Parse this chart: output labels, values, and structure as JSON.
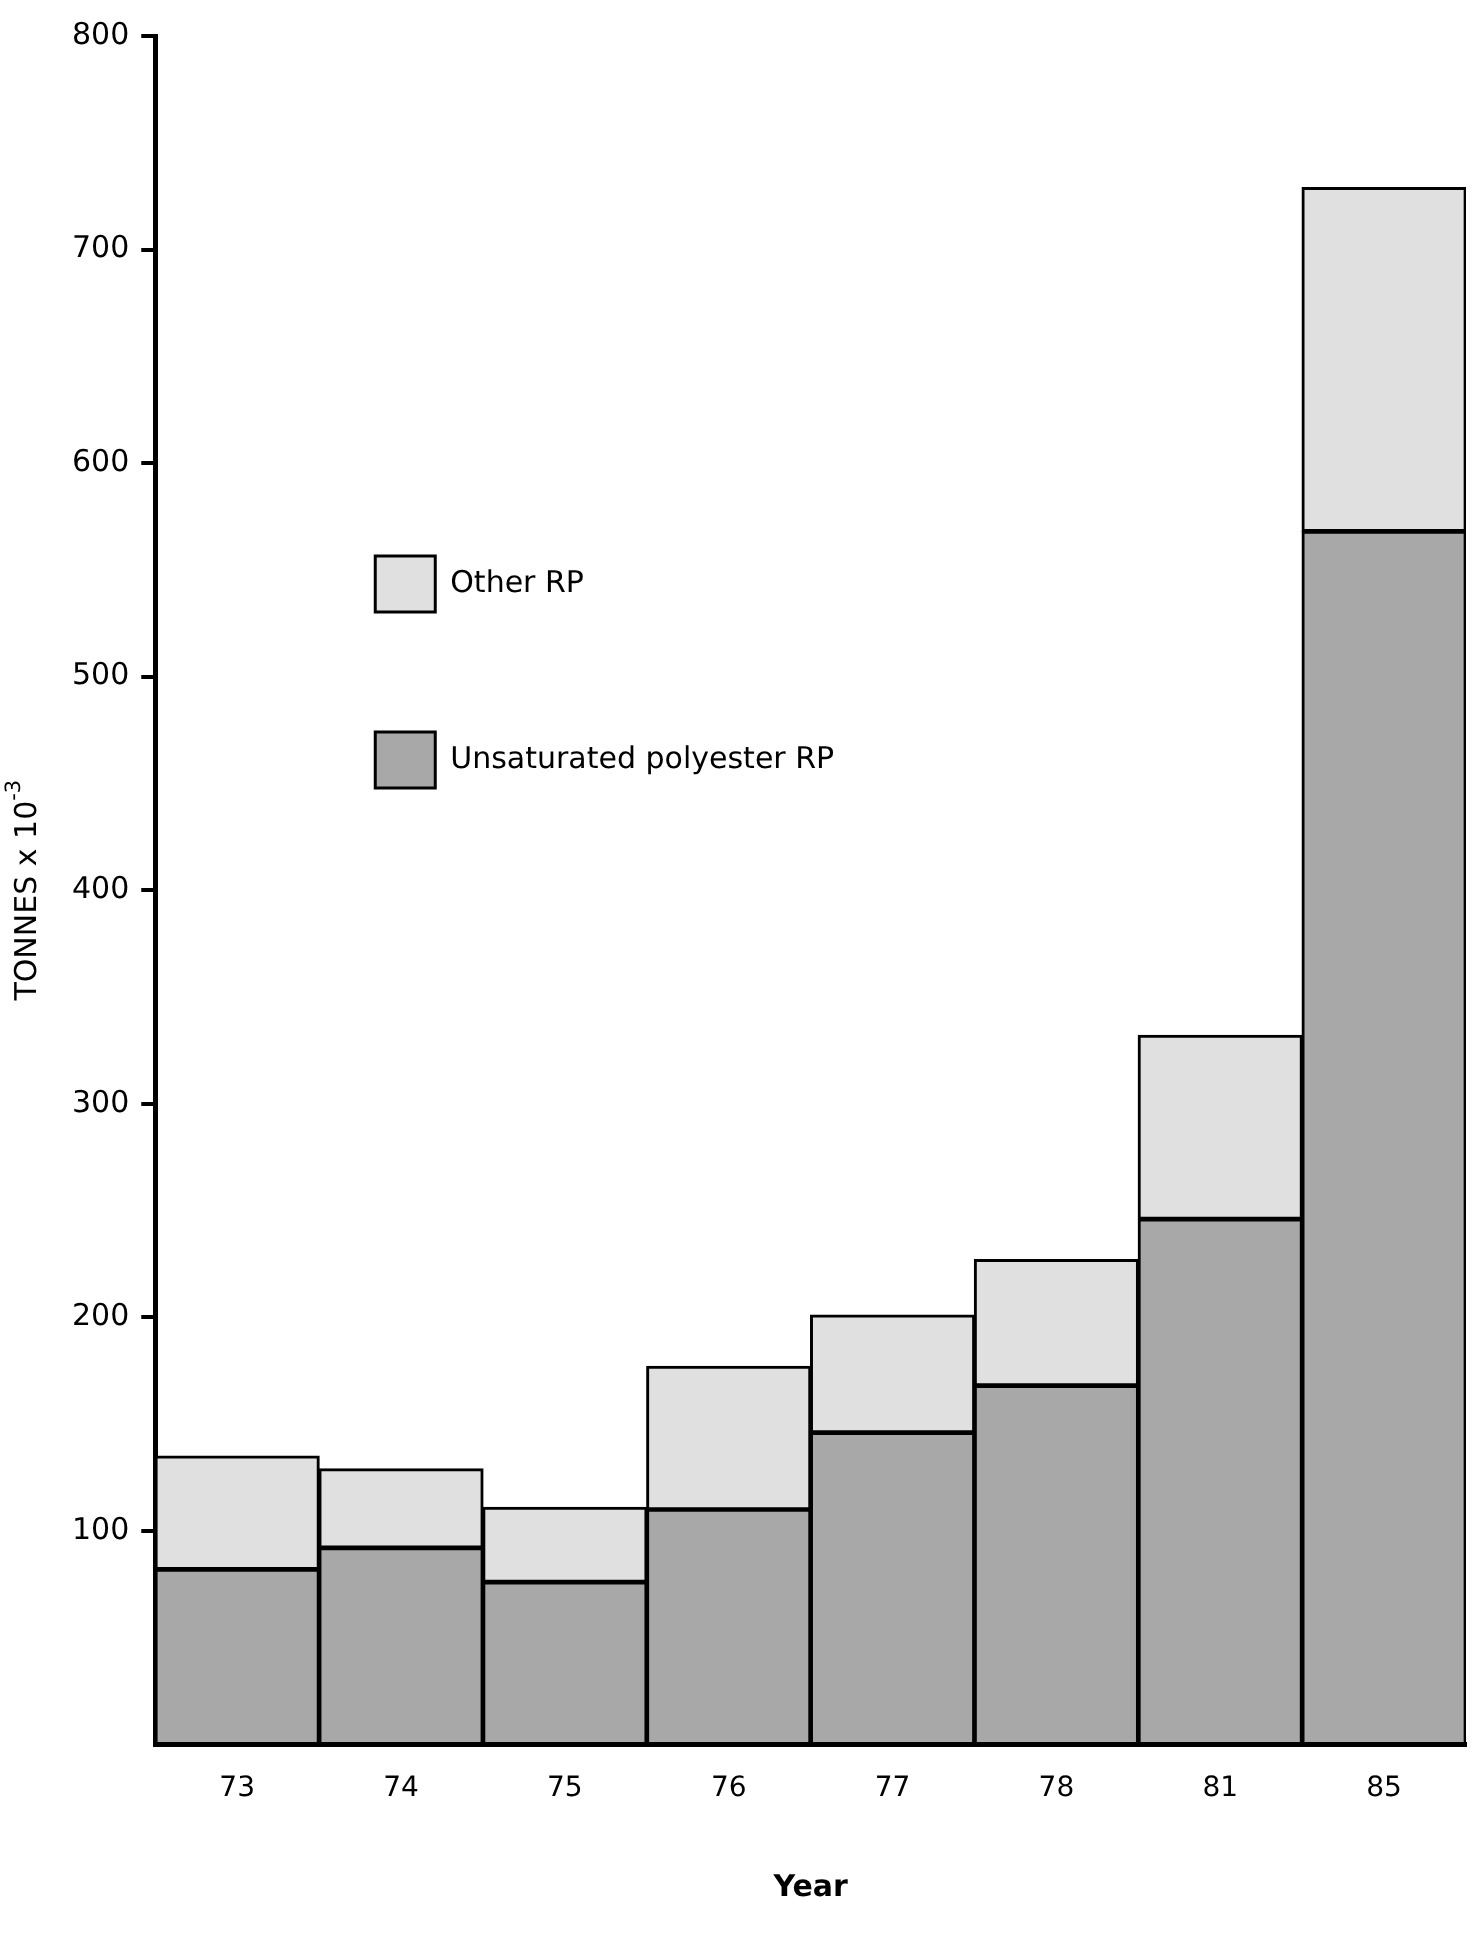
{
  "chart_data": {
    "type": "bar",
    "stacked": true,
    "xlabel": "Year",
    "ylabel": "TONNES x 10$^{-3}$",
    "categories": [
      "73",
      "74",
      "75",
      "76",
      "77",
      "78",
      "81",
      "85"
    ],
    "series": [
      {
        "name": "Unsaturated polyester RP",
        "color": "#a8a8a8",
        "values": [
          82,
          92,
          76,
          110,
          146,
          168,
          246,
          568
        ]
      },
      {
        "name": "Other RP",
        "color": "#e0e0e0",
        "values": [
          53,
          37,
          35,
          67,
          55,
          59,
          86,
          161
        ]
      }
    ],
    "ylim": [
      0,
      800
    ],
    "yticks": [
      100,
      200,
      300,
      400,
      500,
      600,
      700,
      800
    ],
    "grid": false,
    "legend": "top left"
  }
}
